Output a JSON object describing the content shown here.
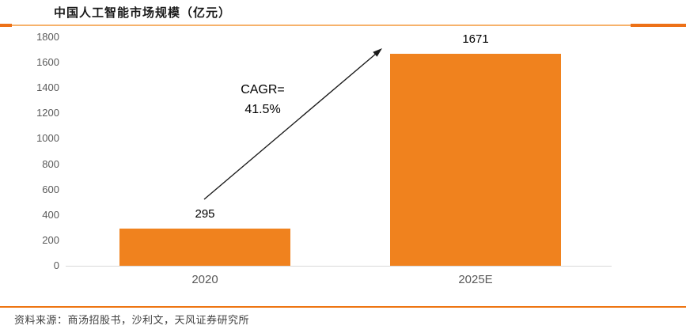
{
  "theme": {
    "accent_orange": "#F0821E",
    "rule_thin": "#F6B26B",
    "rule_thick": "#ED7117",
    "footer_rule": "#EE7511",
    "axis_line": "#D9D9D9",
    "tick_text": "#595959",
    "value_label_text": "#000000",
    "title_text": "#1A1A1A",
    "source_text": "#404040"
  },
  "chart_data": {
    "type": "bar",
    "title": "中国人工智能市场规模（亿元）",
    "categories": [
      "2020",
      "2025E"
    ],
    "values": [
      295,
      1671
    ],
    "value_labels": [
      "295",
      "1671"
    ],
    "xlabel": "",
    "ylabel": "",
    "ylim": [
      0,
      1800
    ],
    "y_ticks": [
      0,
      200,
      400,
      600,
      800,
      1000,
      1200,
      1400,
      1600,
      1800
    ],
    "grid": false,
    "legend": false,
    "bar_color": "#F0821E",
    "annotation": {
      "line1": "CAGR=",
      "line2": "41.5%",
      "arrow_note": "diagonal arrow from 2020 bar up to 2025E bar top"
    }
  },
  "footer": {
    "source": "资料来源：商汤招股书，沙利文，天风证券研究所"
  }
}
